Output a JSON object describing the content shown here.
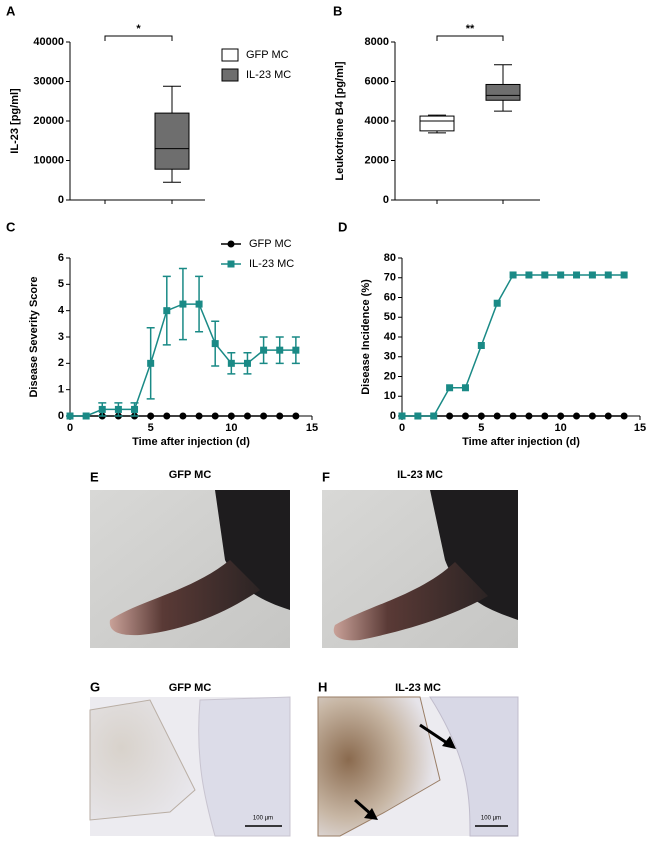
{
  "chart_data": [
    {
      "type": "box",
      "label": "A",
      "ylabel": "IL-23 [pg/ml]",
      "ylim": [
        0,
        40000
      ],
      "yticks": [
        0,
        10000,
        20000,
        30000,
        40000
      ],
      "categories": [
        null,
        null
      ],
      "annotation": "*",
      "legend": "right",
      "series": [
        {
          "name": "GFP MC",
          "color": "#ffffff",
          "min": null,
          "q1": null,
          "median": null,
          "q3": null,
          "max": null
        },
        {
          "name": "IL-23 MC",
          "color": "#6e6e6e",
          "min": 4500,
          "q1": 7800,
          "median": 13000,
          "q3": 22000,
          "max": 28800
        }
      ]
    },
    {
      "type": "box",
      "label": "B",
      "ylabel": "Leukotriene B4 [pg/ml]",
      "ylim": [
        0,
        8000
      ],
      "yticks": [
        0,
        2000,
        4000,
        6000,
        8000
      ],
      "categories": [
        null,
        null
      ],
      "annotation": "**",
      "series": [
        {
          "color": "#ffffff",
          "min": 3400,
          "q1": 3500,
          "median": 4000,
          "q3": 4250,
          "max": 4300
        },
        {
          "color": "#6e6e6e",
          "min": 4500,
          "q1": 5050,
          "median": 5300,
          "q3": 5850,
          "max": 6850
        }
      ]
    },
    {
      "type": "line",
      "label": "C",
      "xlabel": "Time after injection (d)",
      "ylabel": "Disease Severity Score",
      "xlim": [
        0,
        15
      ],
      "xticks": [
        0,
        5,
        10,
        15
      ],
      "ylim": [
        0,
        6
      ],
      "yticks": [
        0,
        1,
        2,
        3,
        4,
        5,
        6
      ],
      "legend": "top-right",
      "x": [
        0,
        1,
        2,
        3,
        4,
        5,
        6,
        7,
        8,
        9,
        10,
        11,
        12,
        13,
        14
      ],
      "series": [
        {
          "name": "GFP MC",
          "color": "#000000",
          "marker": "circle",
          "values": [
            0,
            0,
            0,
            0,
            0,
            0,
            0,
            0,
            0,
            0,
            0,
            0,
            0,
            0,
            0
          ]
        },
        {
          "name": "IL-23 MC",
          "color": "#1a8a86",
          "marker": "square",
          "values": [
            0,
            0,
            0.25,
            0.25,
            0.25,
            2,
            4,
            4.25,
            4.25,
            2.75,
            2,
            2,
            2.5,
            2.5,
            2.5
          ],
          "errors": [
            0,
            0,
            0.25,
            0.25,
            0.25,
            1.35,
            1.3,
            1.35,
            1.05,
            0.85,
            0.4,
            0.4,
            0.5,
            0.5,
            0.5
          ]
        }
      ]
    },
    {
      "type": "line",
      "label": "D",
      "xlabel": "Time after injection (d)",
      "ylabel": "Disease Incidence (%)",
      "xlim": [
        0,
        15
      ],
      "xticks": [
        0,
        5,
        10,
        15
      ],
      "ylim": [
        0,
        80
      ],
      "yticks": [
        0,
        10,
        20,
        30,
        40,
        50,
        60,
        70,
        80
      ],
      "x": [
        0,
        1,
        2,
        3,
        4,
        5,
        6,
        7,
        8,
        9,
        10,
        11,
        12,
        13,
        14
      ],
      "series": [
        {
          "color": "#000000",
          "marker": "circle",
          "values": [
            0,
            0,
            0,
            0,
            0,
            0,
            0,
            0,
            0,
            0,
            0,
            0,
            0,
            0,
            0
          ]
        },
        {
          "color": "#1a8a86",
          "marker": "square",
          "values": [
            0,
            0,
            0,
            14.3,
            14.3,
            35.7,
            57.1,
            71.4,
            71.4,
            71.4,
            71.4,
            71.4,
            71.4,
            71.4,
            71.4
          ]
        }
      ]
    }
  ],
  "panels": [
    {
      "label": "E",
      "title": "GFP MC"
    },
    {
      "label": "F",
      "title": "IL-23 MC"
    },
    {
      "label": "G",
      "title": "GFP MC",
      "scale_bar": "100 µm"
    },
    {
      "label": "H",
      "title": "IL-23 MC",
      "scale_bar": "100 µm"
    }
  ]
}
